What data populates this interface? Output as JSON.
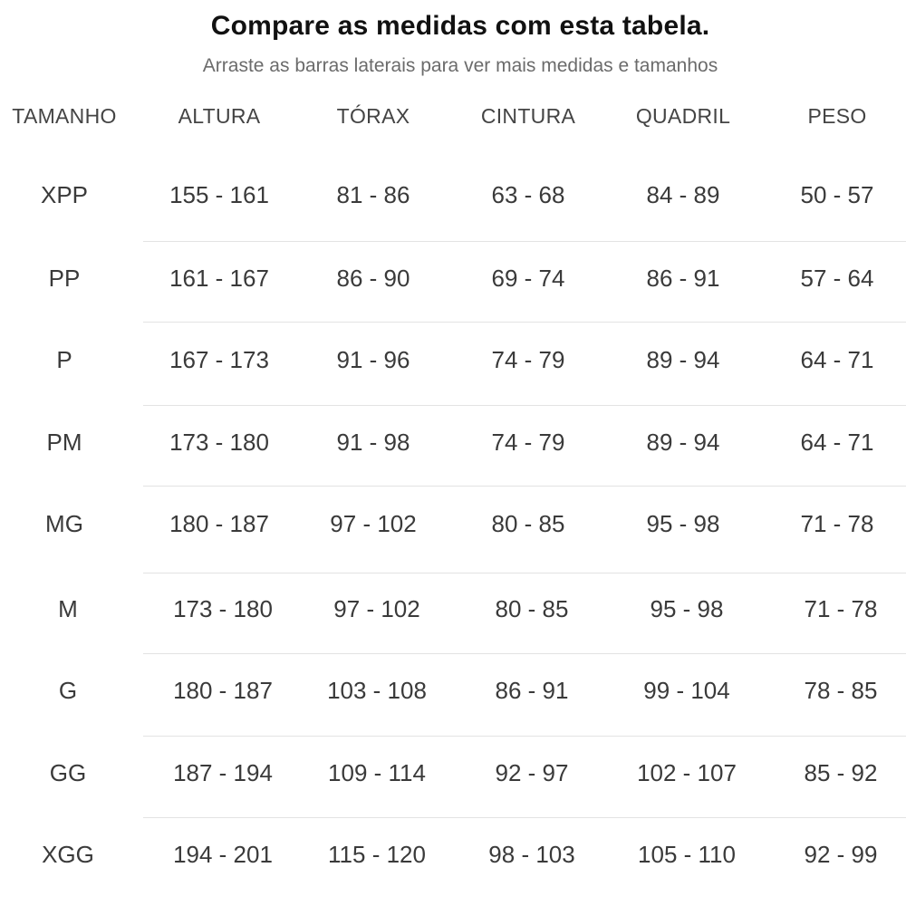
{
  "header": {
    "title": "Compare as medidas com esta tabela.",
    "subtitle": "Arraste as barras laterais para ver mais medidas e tamanhos"
  },
  "table": {
    "columns": [
      "TAMANHO",
      "ALTURA",
      "TÓRAX",
      "CINTURA",
      "QUADRIL",
      "PESO"
    ],
    "rows": [
      [
        "XPP",
        "155 - 161",
        "81 - 86",
        "63 - 68",
        "84 - 89",
        "50 - 57"
      ],
      [
        "PP",
        "161 - 167",
        "86 - 90",
        "69 - 74",
        "86 - 91",
        "57 - 64"
      ],
      [
        "P",
        "167 - 173",
        "91 - 96",
        "74 - 79",
        "89 - 94",
        "64 - 71"
      ],
      [
        "PM",
        "173 - 180",
        "91 - 98",
        "74 - 79",
        "89 - 94",
        "64 - 71"
      ],
      [
        "MG",
        "180 - 187",
        "97 - 102",
        "80 - 85",
        "95 - 98",
        "71 - 78"
      ],
      [
        "M",
        "173 - 180",
        "97 - 102",
        "80 - 85",
        "95 - 98",
        "71 - 78"
      ],
      [
        "G",
        "180 - 187",
        "103 - 108",
        "86 - 91",
        "99 - 104",
        "78 - 85"
      ],
      [
        "GG",
        "187 - 194",
        "109 - 114",
        "92 - 97",
        "102 - 107",
        "85 - 92"
      ],
      [
        "XGG",
        "194 - 201",
        "115 - 120",
        "98 - 103",
        "105 - 110",
        "92 - 99"
      ]
    ]
  }
}
